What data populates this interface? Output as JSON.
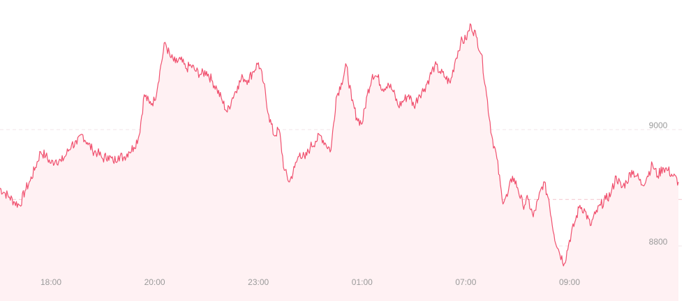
{
  "chart_data": {
    "type": "area",
    "title": "",
    "xlabel": "",
    "ylabel": "",
    "ylim": [
      8720,
      9200
    ],
    "y_ticks": [
      "9000",
      "8800"
    ],
    "y_tick_values": [
      9000,
      8800
    ],
    "reference_value": 8880,
    "x_ticks": [
      "18:00",
      "20:00",
      "23:00",
      "01:00",
      "07:00",
      "09:00"
    ],
    "x_tick_values": [
      10,
      30,
      50,
      70,
      90,
      110
    ],
    "x_range": [
      0,
      131
    ],
    "grid": true,
    "colors": {
      "line": "#f0506e",
      "area": "#fff1f3",
      "grid": "#f0e6e8",
      "reference": "#f3c3cb",
      "label": "#9a9a9a"
    },
    "series": [
      {
        "x": [
          0,
          1,
          2,
          3,
          4,
          5,
          6,
          7,
          8,
          9,
          10,
          11,
          12,
          13,
          14,
          15,
          16,
          17,
          18,
          19,
          20,
          21,
          22,
          23,
          24,
          25,
          26,
          27,
          28,
          29,
          30,
          31,
          32,
          33,
          34,
          35,
          36,
          37,
          38,
          39,
          40,
          41,
          42,
          43,
          44,
          45,
          46,
          47,
          48,
          49,
          50,
          51,
          52,
          53,
          54,
          55,
          56,
          57,
          58,
          59,
          60,
          61,
          62,
          63,
          64,
          65,
          66,
          67,
          68,
          69,
          70,
          71,
          72,
          73,
          74,
          75,
          76,
          77,
          78,
          79,
          80,
          81,
          82,
          83,
          84,
          85,
          86,
          87,
          88,
          89,
          90,
          91,
          92,
          93,
          94,
          95,
          96,
          97,
          98,
          99,
          100,
          101,
          102,
          103,
          104,
          105,
          106,
          107,
          108,
          109,
          110,
          111,
          112,
          113,
          114,
          115,
          116,
          117,
          118,
          119,
          120,
          121,
          122,
          123,
          124,
          125,
          126,
          127,
          128,
          129,
          130,
          131
        ],
        "values": [
          8900,
          8892,
          8884,
          8875,
          8870,
          8895,
          8912,
          8935,
          8962,
          8955,
          8942,
          8948,
          8945,
          8958,
          8975,
          8975,
          8992,
          8978,
          8965,
          8960,
          8950,
          8955,
          8945,
          8955,
          8952,
          8962,
          8970,
          8990,
          9060,
          9045,
          9050,
          9100,
          9150,
          9125,
          9115,
          9120,
          9105,
          9110,
          9100,
          9095,
          9100,
          9085,
          9070,
          9050,
          9030,
          9055,
          9075,
          9090,
          9085,
          9100,
          9115,
          9080,
          9025,
          8990,
          9000,
          8930,
          8910,
          8935,
          8960,
          8950,
          8970,
          8980,
          8990,
          8975,
          8965,
          9055,
          9080,
          9110,
          9050,
          9020,
          9010,
          9060,
          9095,
          9090,
          9070,
          9080,
          9065,
          9040,
          9050,
          9060,
          9040,
          9060,
          9070,
          9090,
          9110,
          9100,
          9090,
          9080,
          9120,
          9150,
          9155,
          9180,
          9160,
          9130,
          9060,
          8990,
          8950,
          8880,
          8885,
          8920,
          8900,
          8870,
          8880,
          8850,
          8880,
          8910,
          8880,
          8820,
          8790,
          8770,
          8810,
          8840,
          8870,
          8860,
          8835,
          8855,
          8870,
          8880,
          8890,
          8920,
          8900,
          8910,
          8930,
          8920,
          8905,
          8920,
          8940,
          8920,
          8935,
          8930,
          8920,
          8910
        ]
      }
    ]
  }
}
